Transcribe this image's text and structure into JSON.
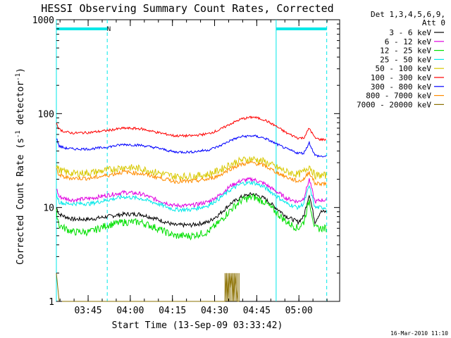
{
  "chart_data": {
    "type": "line",
    "title": "HESSI Observing Summary Count Rates, Corrected",
    "ylabel": "Corrected Count Rate (s",
    "ylabel_sup": "-1",
    "ylabel_mid": " detector",
    "ylabel_end": ")",
    "xlabel": "Start Time (13-Sep-09 03:33:42)",
    "footer_date": "16-Mar-2010 11:10",
    "y_scale": "log",
    "ylim": [
      1,
      1000
    ],
    "y_ticks": [
      {
        "value": 1,
        "label": "1"
      },
      {
        "value": 10,
        "label": "10"
      },
      {
        "value": 100,
        "label": "100"
      },
      {
        "value": 1000,
        "label": "1000"
      }
    ],
    "xlim": [
      "03:33:42",
      "05:14:30"
    ],
    "x_ticks": [
      {
        "label": "03:45",
        "minutes": 11.3
      },
      {
        "label": "04:00",
        "minutes": 26.3
      },
      {
        "label": "04:15",
        "minutes": 41.3
      },
      {
        "label": "04:30",
        "minutes": 56.3
      },
      {
        "label": "04:45",
        "minutes": 71.3
      },
      {
        "label": "05:00",
        "minutes": 86.3
      }
    ],
    "legend": {
      "header1": "Det 1,3,4,5,6,9,",
      "header2": "Att 0",
      "placement": "outside-right"
    },
    "annotations": [
      {
        "text": "N",
        "minutes": 18.5
      }
    ],
    "night_intervals_minutes": [
      [
        0,
        18.1
      ],
      [
        78.2,
        96.2
      ]
    ],
    "series": [
      {
        "name": "3 - 6 keV",
        "color": "#000000",
        "x_minutes": [
          0,
          1,
          3,
          6,
          12,
          18,
          24,
          30,
          36,
          42,
          48,
          54,
          58,
          62,
          66,
          70,
          74,
          78,
          82,
          86,
          88,
          90,
          92,
          94,
          96.2
        ],
        "values": [
          10,
          8.5,
          8,
          7.5,
          7.5,
          8,
          8.5,
          8.5,
          7.5,
          6.5,
          6.5,
          7,
          8.5,
          11,
          13,
          14,
          12.5,
          10,
          8,
          7,
          8,
          14,
          7,
          9,
          9
        ]
      },
      {
        "name": "6 - 12 keV",
        "color": "#e000e0",
        "x_minutes": [
          0,
          1,
          3,
          6,
          12,
          18,
          24,
          30,
          36,
          42,
          48,
          54,
          58,
          62,
          66,
          70,
          74,
          78,
          82,
          86,
          88,
          90,
          92,
          94,
          96.2
        ],
        "values": [
          16,
          13,
          12.5,
          12,
          12.5,
          13.5,
          14.5,
          14,
          12,
          10.5,
          10.5,
          11.5,
          13.5,
          17,
          19.5,
          20,
          18,
          15,
          12.5,
          11.5,
          12.5,
          20,
          11.5,
          12,
          12
        ]
      },
      {
        "name": "12 - 25 keV",
        "color": "#00e000",
        "x_minutes": [
          0,
          1,
          3,
          6,
          12,
          18,
          24,
          30,
          36,
          42,
          48,
          54,
          58,
          62,
          66,
          70,
          74,
          78,
          82,
          86,
          88,
          90,
          92,
          94,
          96.2
        ],
        "values": [
          9,
          6.5,
          6,
          5.5,
          5.5,
          6.5,
          7,
          7,
          6,
          5,
          5,
          5.5,
          7,
          9.5,
          12,
          13,
          11.5,
          9,
          7,
          6,
          7,
          12,
          6,
          6,
          6
        ]
      },
      {
        "name": "25 - 50 keV",
        "color": "#00e8e8",
        "x_minutes": [
          0,
          1,
          3,
          6,
          12,
          18,
          24,
          30,
          36,
          42,
          48,
          54,
          58,
          62,
          66,
          70,
          74,
          78,
          82,
          86,
          88,
          90,
          92,
          94,
          96.2
        ],
        "values": [
          14,
          11.5,
          11,
          11,
          11,
          12,
          13,
          12.5,
          11,
          9.5,
          9.5,
          10.5,
          12.5,
          15.5,
          18,
          18.5,
          16.5,
          13.5,
          11,
          10,
          11,
          17,
          10,
          10,
          10
        ]
      },
      {
        "name": "50 - 100 keV",
        "color": "#d8c800",
        "x_minutes": [
          0,
          1,
          3,
          6,
          12,
          18,
          24,
          30,
          36,
          42,
          48,
          54,
          58,
          62,
          66,
          70,
          74,
          78,
          82,
          86,
          88,
          90,
          92,
          94,
          96.2
        ],
        "values": [
          28,
          25,
          24,
          23,
          23.5,
          25,
          27,
          26,
          23.5,
          21.5,
          21.5,
          22.5,
          25,
          29,
          32,
          33,
          31,
          27,
          24,
          22.5,
          24,
          28,
          22,
          22,
          22
        ]
      },
      {
        "name": "100 - 300 keV",
        "color": "#ff0000",
        "x_minutes": [
          0,
          1,
          3,
          6,
          12,
          18,
          24,
          30,
          36,
          42,
          48,
          54,
          58,
          62,
          66,
          70,
          74,
          78,
          82,
          86,
          88,
          90,
          92,
          94,
          96.2
        ],
        "values": [
          80,
          68,
          64,
          62,
          63,
          66,
          70,
          69,
          63,
          58,
          58,
          61,
          67,
          78,
          88,
          92,
          86,
          74,
          62,
          55,
          55,
          70,
          55,
          53,
          53
        ]
      },
      {
        "name": "300 - 800 keV",
        "color": "#0000ff",
        "x_minutes": [
          0,
          1,
          3,
          6,
          12,
          18,
          24,
          30,
          36,
          42,
          48,
          54,
          58,
          62,
          66,
          70,
          74,
          78,
          82,
          86,
          88,
          90,
          92,
          94,
          96.2
        ],
        "values": [
          55,
          45,
          43,
          42,
          42,
          44,
          47,
          46,
          43,
          39,
          39,
          41,
          45,
          52,
          57,
          58,
          55,
          48,
          42,
          38,
          38,
          49,
          36,
          35,
          35
        ]
      },
      {
        "name": "800 - 7000 keV",
        "color": "#ff8c00",
        "x_minutes": [
          0,
          1,
          3,
          6,
          12,
          18,
          24,
          30,
          36,
          42,
          48,
          54,
          58,
          62,
          66,
          70,
          74,
          78,
          82,
          86,
          88,
          90,
          92,
          94,
          96.2
        ],
        "values": [
          26,
          22,
          21,
          20.5,
          20.5,
          22,
          24,
          23,
          21,
          19,
          19,
          20,
          22,
          26,
          29,
          30,
          28,
          24,
          21,
          19,
          20,
          24,
          18,
          18,
          18
        ]
      },
      {
        "name": "7000 - 20000 keV",
        "color": "#8b7000",
        "x_minutes": [
          0,
          0.5,
          1,
          60,
          60.5,
          61,
          61.5,
          62,
          62.5,
          63,
          63.5,
          64,
          64.5,
          65
        ],
        "values": [
          2.0,
          1.4,
          1.0,
          1.0,
          2.0,
          1.0,
          2.0,
          1.4,
          2.0,
          1.0,
          2.0,
          1.4,
          1.0,
          1.0
        ]
      }
    ]
  }
}
